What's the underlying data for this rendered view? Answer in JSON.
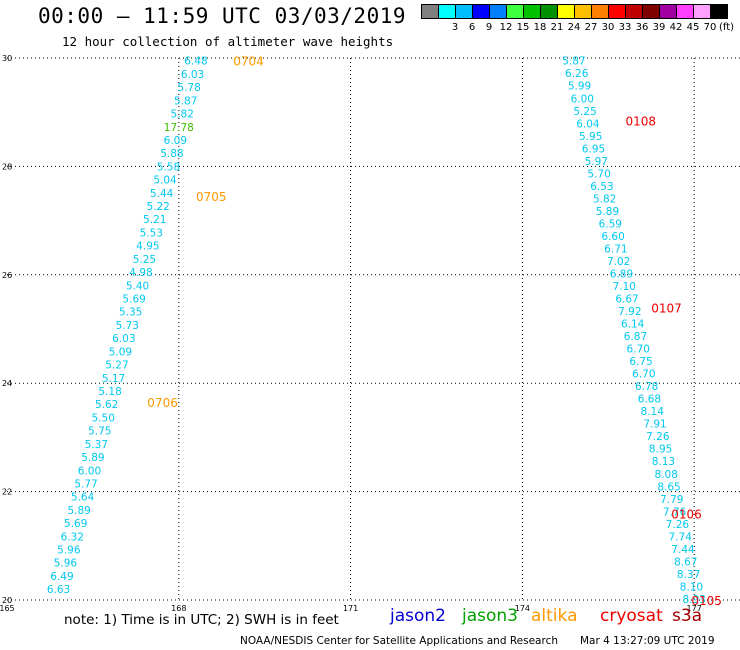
{
  "header": {
    "title": "00:00 — 11:59 UTC 03/03/2019",
    "subtitle": "12 hour collection of altimeter wave heights"
  },
  "scale": {
    "unit": "(ft)",
    "swatches": [
      {
        "label": "",
        "color": "#808080"
      },
      {
        "label": "3",
        "color": "#00ffff"
      },
      {
        "label": "6",
        "color": "#00bfff"
      },
      {
        "label": "9",
        "color": "#0000ff"
      },
      {
        "label": "12",
        "color": "#0080ff"
      },
      {
        "label": "15",
        "color": "#40ff40"
      },
      {
        "label": "18",
        "color": "#00c000"
      },
      {
        "label": "21",
        "color": "#009000"
      },
      {
        "label": "24",
        "color": "#ffff00"
      },
      {
        "label": "27",
        "color": "#ffc000"
      },
      {
        "label": "30",
        "color": "#ff8000"
      },
      {
        "label": "33",
        "color": "#ff0000"
      },
      {
        "label": "36",
        "color": "#c00000"
      },
      {
        "label": "39",
        "color": "#800000"
      },
      {
        "label": "42",
        "color": "#a000a0"
      },
      {
        "label": "45",
        "color": "#ff40ff"
      },
      {
        "label": "70",
        "color": "#ffa0ff"
      },
      {
        "label": "",
        "color": "#000000"
      }
    ]
  },
  "note": "note: 1) Time is in UTC; 2) SWH is in feet",
  "legend": [
    {
      "name": "jason2",
      "color": "#0000d0"
    },
    {
      "name": "jason3",
      "color": "#00a000"
    },
    {
      "name": "altika",
      "color": "#ff9900"
    },
    {
      "name": "cryosat",
      "color": "#ee0000"
    },
    {
      "name": "s3a",
      "color": "#a00000"
    }
  ],
  "footer": {
    "credit": "NOAA/NESDIS Center for Satellite Applications and Research",
    "timestamp": "Mar  4 13:27:09 UTC 2019"
  },
  "chart_data": {
    "type": "scatter",
    "xlim": [
      165,
      177.8
    ],
    "ylim": [
      20,
      30
    ],
    "x_ticks": [
      "165",
      "168",
      "171",
      "174",
      "177"
    ],
    "x_tick_values": [
      165,
      168,
      171,
      174,
      177
    ],
    "y_ticks": [
      "20",
      "22",
      "24",
      "26",
      "28",
      "30"
    ],
    "y_tick_values": [
      20,
      22,
      24,
      26,
      28,
      30
    ],
    "grid": true,
    "colors": {
      "value": "#00c8f0",
      "value_high": "#40c000",
      "time_altika": "#ff9900",
      "time_cryosat": "#ee0000"
    },
    "tracks": [
      {
        "name": "track-1",
        "x_start": 168.3,
        "y_start": 29.95,
        "x_end": 165.9,
        "y_end": 20.2,
        "values": [
          "6.48",
          "6.03",
          "5.78",
          "5.87",
          "5.82",
          "17.78",
          "6.09",
          "5.88",
          "5.58",
          "5.04",
          "5.44",
          "5.22",
          "5.21",
          "5.53",
          "4.95",
          "5.25",
          "4.98",
          "5.40",
          "5.69",
          "5.35",
          "5.73",
          "6.03",
          "5.09",
          "5.27",
          "5.17",
          "5.18",
          "5.62",
          "5.50",
          "5.75",
          "5.37",
          "5.89",
          "6.00",
          "5.77",
          "5.64",
          "5.89",
          "5.69",
          "6.32",
          "5.96",
          "5.96",
          "6.49",
          "6.63"
        ],
        "highlight": {
          "17.78": "value_high"
        }
      },
      {
        "name": "track-2",
        "x_start": 174.9,
        "y_start": 29.95,
        "x_end": 177.0,
        "y_end": 20.02,
        "values": [
          "5.87",
          "6.26",
          "5.99",
          "6.00",
          "5.25",
          "6.04",
          "5.95",
          "6.95",
          "5.97",
          "5.70",
          "6.53",
          "5.82",
          "5.89",
          "6.59",
          "6.60",
          "6.71",
          "7.02",
          "6.89",
          "7.10",
          "6.67",
          "7.92",
          "6.14",
          "6.87",
          "6.70",
          "6.75",
          "6.70",
          "6.78",
          "6.68",
          "8.14",
          "7.91",
          "7.26",
          "8.95",
          "8.13",
          "8.08",
          "8.65",
          "7.79",
          "7.76",
          "7.26",
          "7.74",
          "7.44",
          "8.67",
          "8.37",
          "8.10",
          "8.93"
        ]
      }
    ],
    "times": [
      {
        "label": "0704",
        "x": 168.95,
        "y": 29.95,
        "color": "time_altika"
      },
      {
        "label": "0705",
        "x": 168.3,
        "y": 27.45,
        "color": "time_altika"
      },
      {
        "label": "0706",
        "x": 167.45,
        "y": 23.65,
        "color": "time_altika"
      },
      {
        "label": "0108",
        "x": 175.8,
        "y": 28.85,
        "color": "time_cryosat"
      },
      {
        "label": "0107",
        "x": 176.25,
        "y": 25.4,
        "color": "time_cryosat"
      },
      {
        "label": "0106",
        "x": 176.6,
        "y": 21.6,
        "color": "time_cryosat"
      },
      {
        "label": "0105",
        "x": 176.95,
        "y": 20.0,
        "color": "time_cryosat"
      }
    ]
  }
}
